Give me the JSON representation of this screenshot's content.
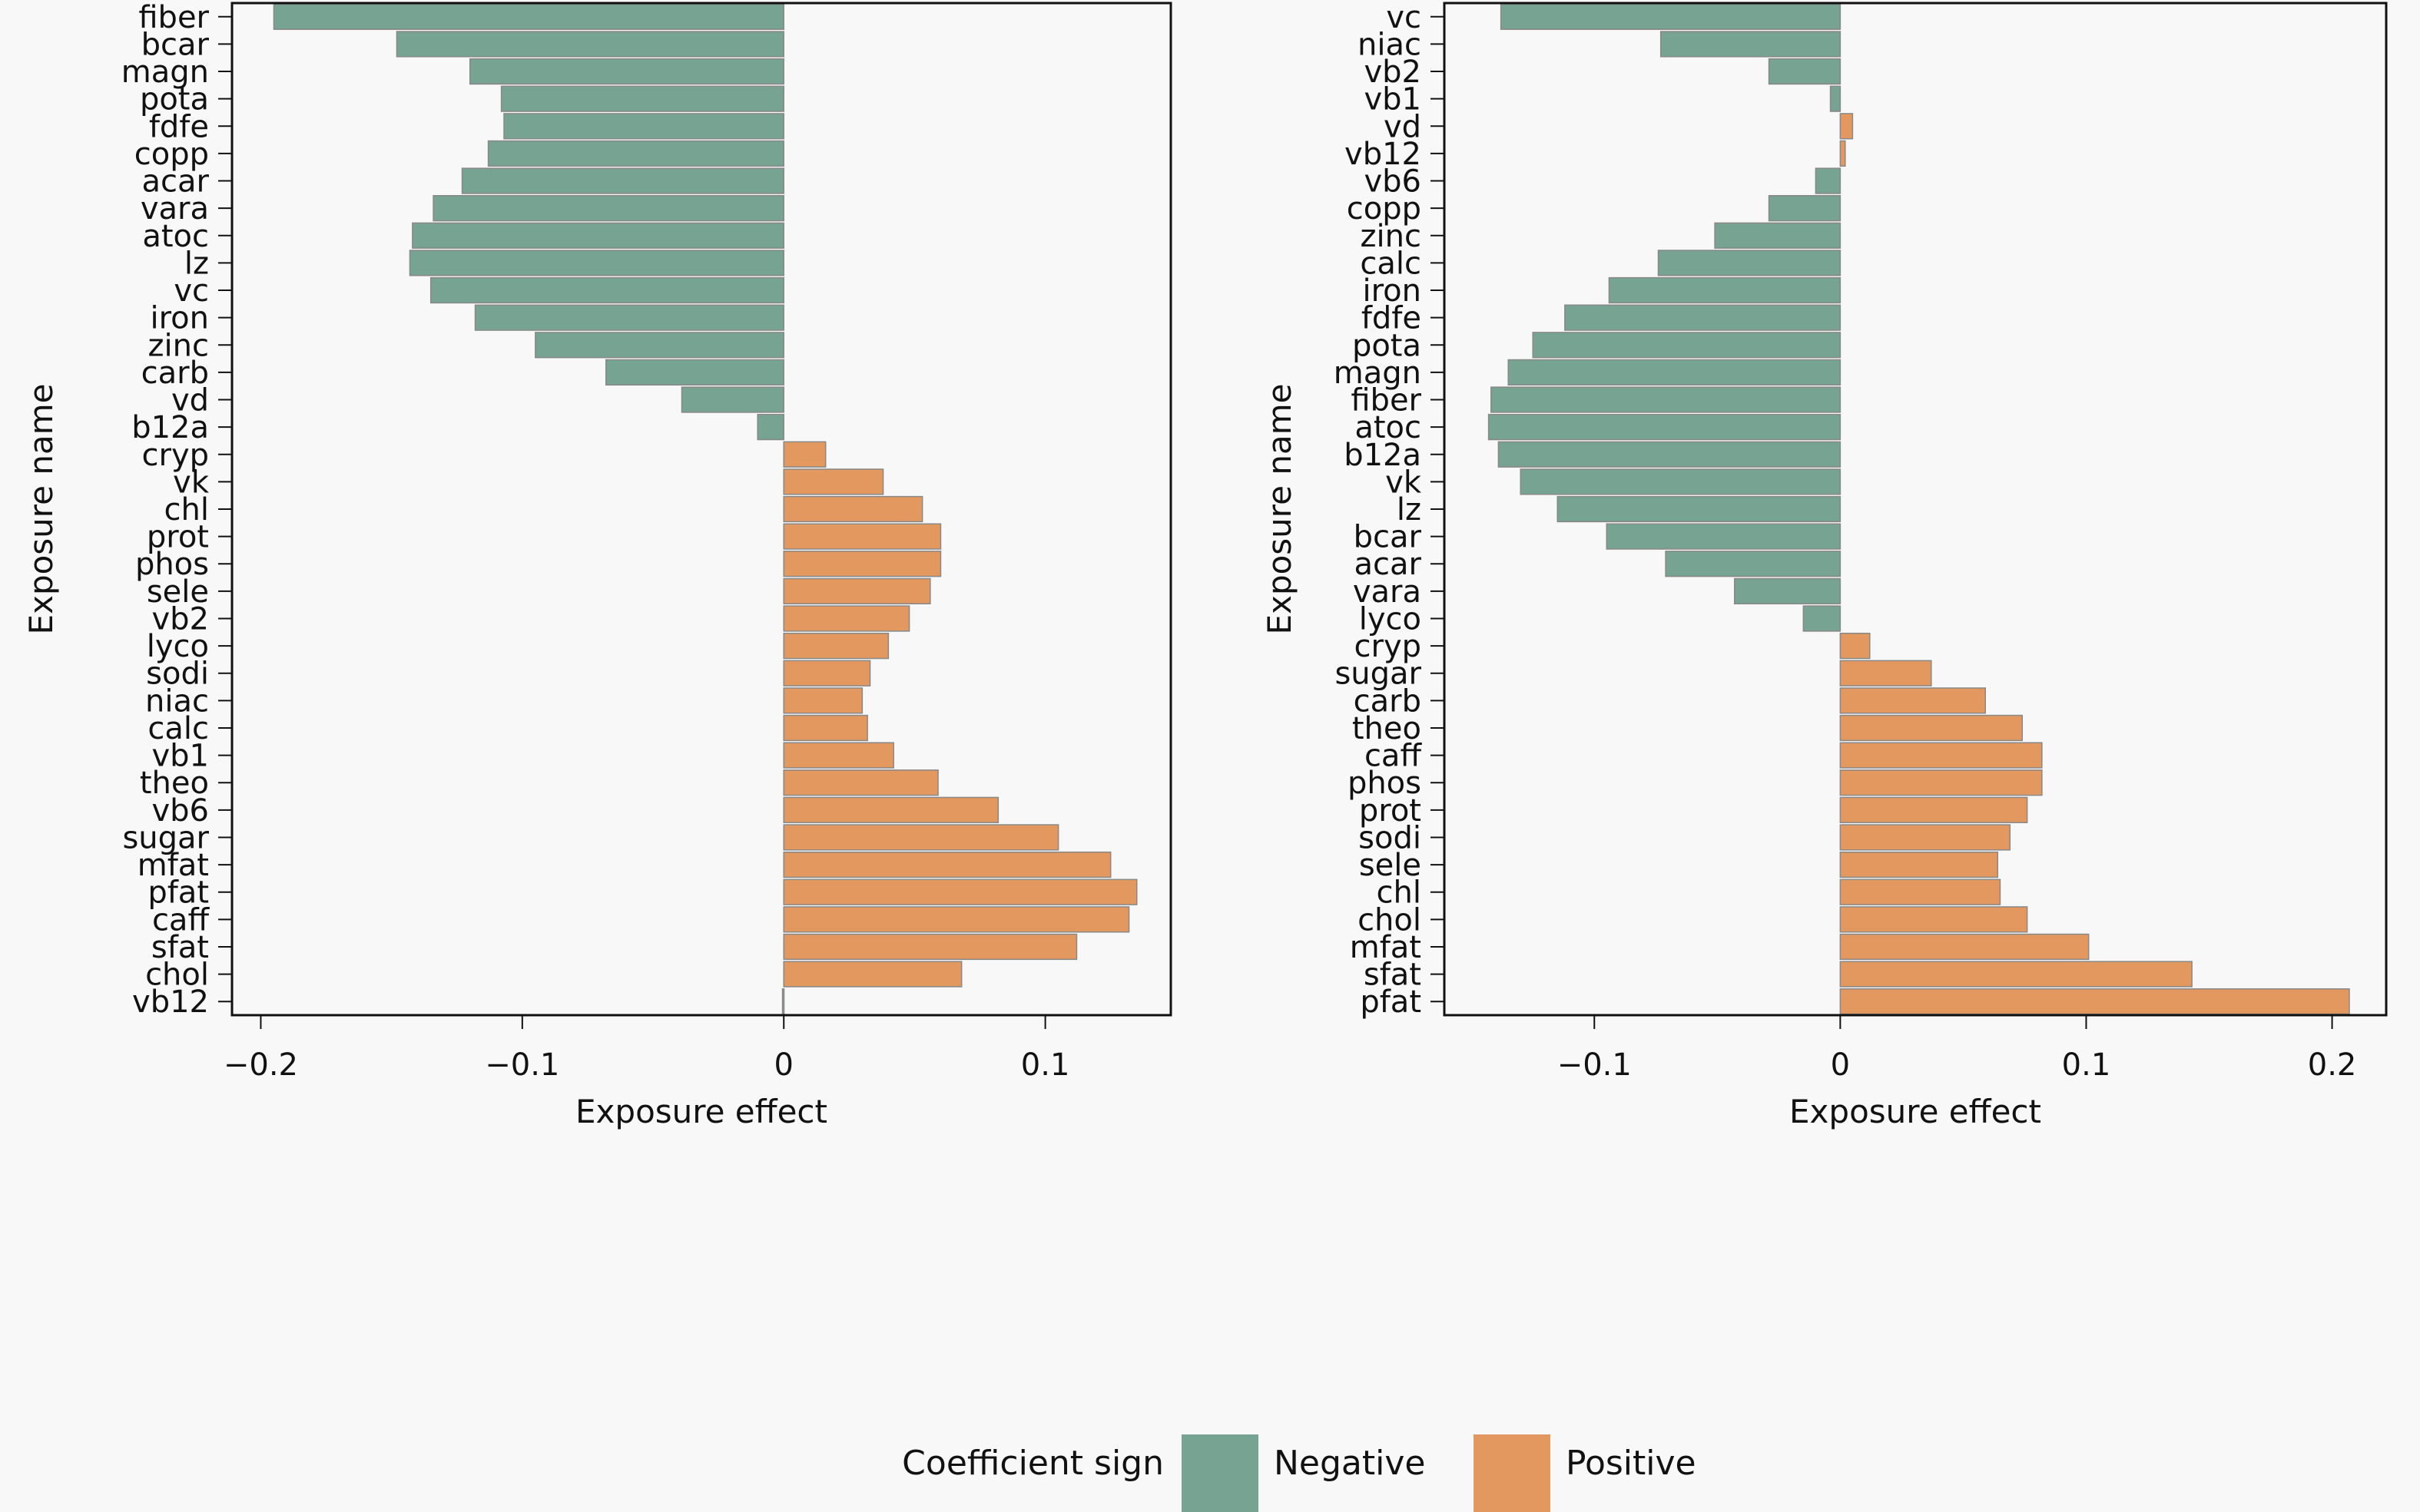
{
  "colors": {
    "negative": "#77a393",
    "positive": "#e3985f",
    "background": "#f8f8f8"
  },
  "legend": {
    "title": "Coefficient sign",
    "items": [
      {
        "label": "Negative",
        "key": "negative"
      },
      {
        "label": "Positive",
        "key": "positive"
      }
    ]
  },
  "chart_data": [
    {
      "type": "bar",
      "orientation": "horizontal",
      "xlabel": "Exposure effect",
      "ylabel": "Exposure name",
      "xlim": [
        -0.211,
        0.148
      ],
      "xticks": [
        -0.2,
        -0.1,
        0,
        0.1
      ],
      "xtick_labels": [
        "−0.2",
        "−0.1",
        "0",
        "0.1"
      ],
      "grid": false,
      "categories": [
        "fiber",
        "bcar",
        "magn",
        "pota",
        "fdfe",
        "copp",
        "acar",
        "vara",
        "atoc",
        "lz",
        "vc",
        "iron",
        "zinc",
        "carb",
        "vd",
        "b12a",
        "cryp",
        "vk",
        "chl",
        "prot",
        "phos",
        "sele",
        "vb2",
        "lyco",
        "sodi",
        "niac",
        "calc",
        "vb1",
        "theo",
        "vb6",
        "sugar",
        "mfat",
        "pfat",
        "caff",
        "sfat",
        "chol",
        "vb12"
      ],
      "values": [
        -0.195,
        -0.148,
        -0.12,
        -0.108,
        -0.107,
        -0.113,
        -0.123,
        -0.134,
        -0.142,
        -0.143,
        -0.135,
        -0.118,
        -0.095,
        -0.068,
        -0.039,
        -0.01,
        0.016,
        0.038,
        0.053,
        0.06,
        0.06,
        0.056,
        0.048,
        0.04,
        0.033,
        0.03,
        0.032,
        0.042,
        0.059,
        0.082,
        0.105,
        0.125,
        0.135,
        0.132,
        0.112,
        0.068,
        -0.0005
      ]
    },
    {
      "type": "bar",
      "orientation": "horizontal",
      "xlabel": "Exposure effect",
      "ylabel": "Exposure name",
      "xlim": [
        -0.161,
        0.222
      ],
      "xticks": [
        -0.1,
        0,
        0.1,
        0.2
      ],
      "xtick_labels": [
        "−0.1",
        "0",
        "0.1",
        "0.2"
      ],
      "grid": false,
      "categories": [
        "vc",
        "niac",
        "vb2",
        "vb1",
        "vd",
        "vb12",
        "vb6",
        "copp",
        "zinc",
        "calc",
        "iron",
        "fdfe",
        "pota",
        "magn",
        "fiber",
        "atoc",
        "b12a",
        "vk",
        "lz",
        "bcar",
        "acar",
        "vara",
        "lyco",
        "cryp",
        "sugar",
        "carb",
        "theo",
        "caff",
        "phos",
        "prot",
        "sodi",
        "sele",
        "chl",
        "chol",
        "mfat",
        "sfat",
        "pfat"
      ],
      "values": [
        -0.138,
        -0.073,
        -0.029,
        -0.004,
        0.005,
        0.002,
        -0.01,
        -0.029,
        -0.051,
        -0.074,
        -0.094,
        -0.112,
        -0.125,
        -0.135,
        -0.142,
        -0.143,
        -0.139,
        -0.13,
        -0.115,
        -0.095,
        -0.071,
        -0.043,
        -0.015,
        0.012,
        0.037,
        0.059,
        0.074,
        0.082,
        0.082,
        0.076,
        0.069,
        0.064,
        0.065,
        0.076,
        0.101,
        0.143,
        0.207
      ]
    }
  ]
}
